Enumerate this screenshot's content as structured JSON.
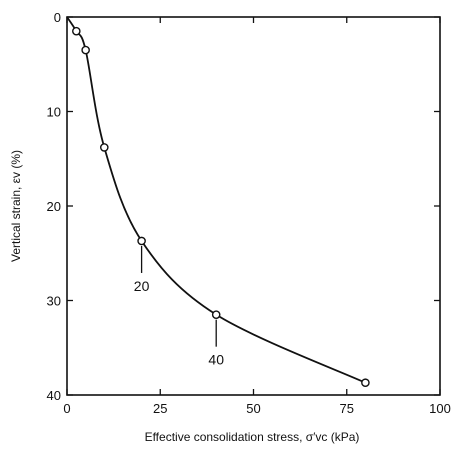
{
  "chart_data": {
    "type": "line",
    "title": "",
    "xlabel": "Effective consolidation stress, σ′vc (kPa)",
    "ylabel": "Vertical strain, εv (%)",
    "xlim": [
      0,
      100
    ],
    "ylim": [
      0,
      40
    ],
    "y_inverted": true,
    "x_ticks": [
      "0",
      "25",
      "50",
      "75",
      "100"
    ],
    "y_ticks": [
      "0",
      "10",
      "20",
      "30",
      "40"
    ],
    "grid": false,
    "legend": "none",
    "line_color": "#111111",
    "marker": "open-circle",
    "series": [
      {
        "name": "",
        "points": [
          {
            "x": 0,
            "y": 0
          },
          {
            "x": 2.5,
            "y": 1.5
          },
          {
            "x": 5,
            "y": 3.5
          },
          {
            "x": 10,
            "y": 13.8
          },
          {
            "x": 20,
            "y": 23.7
          },
          {
            "x": 40,
            "y": 31.5
          },
          {
            "x": 80,
            "y": 38.7
          }
        ]
      }
    ],
    "annotations": [
      {
        "text": "20",
        "x": 20,
        "y": 23.7
      },
      {
        "text": "40",
        "x": 40,
        "y": 31.5
      }
    ]
  }
}
